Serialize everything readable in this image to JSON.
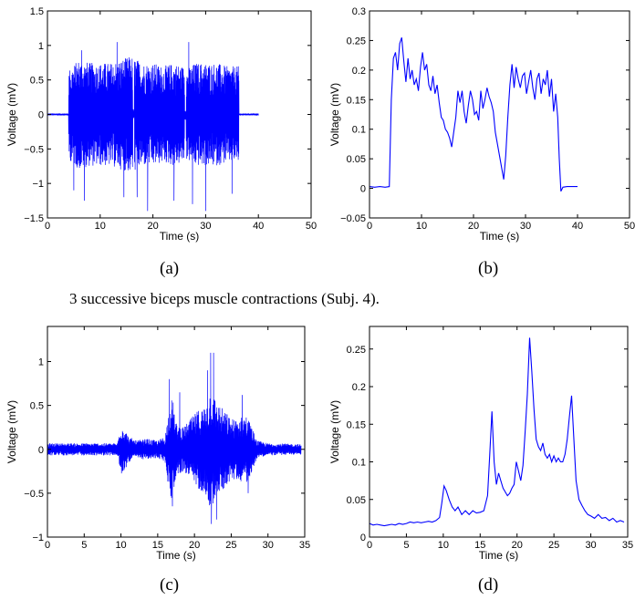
{
  "caption": "3 successive biceps muscle contractions (Subj. 4).",
  "sublabels": [
    "(a)",
    "(b)",
    "(c)",
    "(d)"
  ],
  "chart_data": [
    {
      "id": "a",
      "type": "line",
      "xlabel": "Time (s)",
      "ylabel": "Voltage (mV)",
      "xlim": [
        0,
        50
      ],
      "ylim": [
        -1.5,
        1.5
      ],
      "xticks": [
        0,
        10,
        20,
        30,
        40,
        50
      ],
      "yticks": [
        -1.5,
        -1,
        -0.5,
        0,
        0.5,
        1,
        1.5
      ],
      "ytick_labels": [
        "−1.5",
        "−1",
        "−0.5",
        "0",
        "0.5",
        "1",
        "1.5"
      ],
      "signal": "raw-emg",
      "series": [
        {
          "color": "#0000ff",
          "quiet": [
            [
              0,
              4.0
            ],
            [
              36.3,
              40
            ]
          ],
          "active": [
            [
              4.0,
              25.8
            ],
            [
              26.3,
              36.3
            ]
          ],
          "dropouts": [
            [
              16.2,
              16.5
            ],
            [
              26.0,
              26.3
            ]
          ],
          "envelope": [
            [
              4,
              0.65
            ],
            [
              6,
              0.8
            ],
            [
              8,
              0.75
            ],
            [
              10,
              0.75
            ],
            [
              12,
              0.75
            ],
            [
              14,
              0.8
            ],
            [
              16,
              0.85
            ],
            [
              18,
              0.75
            ],
            [
              20,
              0.75
            ],
            [
              22,
              0.7
            ],
            [
              24,
              0.75
            ],
            [
              25.8,
              0.7
            ],
            [
              26.3,
              0.65
            ],
            [
              28,
              0.75
            ],
            [
              30,
              0.75
            ],
            [
              32,
              0.75
            ],
            [
              34,
              0.7
            ],
            [
              36.3,
              0.7
            ]
          ],
          "peaks": [
            [
              5.0,
              -1.1
            ],
            [
              6.5,
              0.93
            ],
            [
              7.0,
              -1.25
            ],
            [
              13.2,
              1.05
            ],
            [
              14.5,
              -1.2
            ],
            [
              17.0,
              -1.2
            ],
            [
              19.0,
              -1.4
            ],
            [
              24.0,
              -1.25
            ],
            [
              26.8,
              1.05
            ],
            [
              27.5,
              -1.3
            ],
            [
              30.0,
              -1.4
            ],
            [
              35.0,
              -1.15
            ]
          ]
        }
      ]
    },
    {
      "id": "b",
      "type": "line",
      "xlabel": "Time (s)",
      "ylabel": "Voltage (mV)",
      "xlim": [
        0,
        50
      ],
      "ylim": [
        -0.05,
        0.3
      ],
      "xticks": [
        0,
        10,
        20,
        30,
        40,
        50
      ],
      "yticks": [
        -0.05,
        0,
        0.05,
        0.1,
        0.15,
        0.2,
        0.25,
        0.3
      ],
      "ytick_labels": [
        "−0.05",
        "0",
        "0.05",
        "0.1",
        "0.15",
        "0.2",
        "0.25",
        "0.3"
      ],
      "series": [
        {
          "color": "#0000ff",
          "x": [
            0,
            1,
            2,
            3,
            3.8,
            4.2,
            4.6,
            5.0,
            5.4,
            5.8,
            6.2,
            6.6,
            7.0,
            7.4,
            7.8,
            8.2,
            8.6,
            9.0,
            9.4,
            9.8,
            10.2,
            10.6,
            11.0,
            11.4,
            11.8,
            12.2,
            12.6,
            13.0,
            13.4,
            13.8,
            14.2,
            14.6,
            15.0,
            15.4,
            15.8,
            16.2,
            16.6,
            17.0,
            17.4,
            17.8,
            18.2,
            18.6,
            19.0,
            19.4,
            19.8,
            20.2,
            20.6,
            21.0,
            21.4,
            21.8,
            22.2,
            22.6,
            23.0,
            23.4,
            23.8,
            24.2,
            24.6,
            25.0,
            25.4,
            25.8,
            26.2,
            26.6,
            27.0,
            27.4,
            27.8,
            28.2,
            28.6,
            29.0,
            29.4,
            29.8,
            30.2,
            30.6,
            31.0,
            31.4,
            31.8,
            32.2,
            32.6,
            33.0,
            33.4,
            33.8,
            34.2,
            34.6,
            35.0,
            35.4,
            35.8,
            36.2,
            36.5,
            36.8,
            37.2,
            38,
            39,
            40
          ],
          "y": [
            0.003,
            0.002,
            0.003,
            0.002,
            0.003,
            0.15,
            0.22,
            0.23,
            0.2,
            0.245,
            0.255,
            0.215,
            0.18,
            0.22,
            0.185,
            0.2,
            0.175,
            0.185,
            0.165,
            0.205,
            0.23,
            0.2,
            0.21,
            0.175,
            0.165,
            0.19,
            0.16,
            0.175,
            0.145,
            0.12,
            0.115,
            0.1,
            0.095,
            0.085,
            0.07,
            0.095,
            0.12,
            0.165,
            0.145,
            0.165,
            0.13,
            0.11,
            0.14,
            0.165,
            0.15,
            0.125,
            0.13,
            0.115,
            0.165,
            0.135,
            0.15,
            0.17,
            0.155,
            0.145,
            0.13,
            0.095,
            0.075,
            0.055,
            0.035,
            0.015,
            0.055,
            0.12,
            0.175,
            0.21,
            0.17,
            0.205,
            0.185,
            0.17,
            0.19,
            0.195,
            0.16,
            0.18,
            0.2,
            0.17,
            0.15,
            0.185,
            0.195,
            0.16,
            0.185,
            0.175,
            0.2,
            0.155,
            0.185,
            0.13,
            0.16,
            0.12,
            0.05,
            -0.005,
            0.002,
            0.003,
            0.003,
            0.003
          ]
        }
      ]
    },
    {
      "id": "c",
      "type": "line",
      "xlabel": "Time (s)",
      "ylabel": "Voltage (mV)",
      "xlim": [
        0,
        35
      ],
      "ylim": [
        -1,
        1.4
      ],
      "xticks": [
        0,
        5,
        10,
        15,
        20,
        25,
        30,
        35
      ],
      "yticks": [
        -1,
        -0.5,
        0,
        0.5,
        1
      ],
      "ytick_labels": [
        "−1",
        "−0.5",
        "0",
        "0.5",
        "1"
      ],
      "signal": "raw-emg",
      "series": [
        {
          "color": "#0000ff",
          "envelope": [
            [
              0,
              0.07
            ],
            [
              5,
              0.07
            ],
            [
              9.5,
              0.07
            ],
            [
              10,
              0.3
            ],
            [
              10.5,
              0.25
            ],
            [
              11,
              0.15
            ],
            [
              12,
              0.1
            ],
            [
              13.5,
              0.12
            ],
            [
              15,
              0.1
            ],
            [
              16,
              0.15
            ],
            [
              16.6,
              0.5
            ],
            [
              17,
              0.6
            ],
            [
              17.5,
              0.3
            ],
            [
              18.5,
              0.25
            ],
            [
              19.5,
              0.35
            ],
            [
              20.5,
              0.45
            ],
            [
              21.5,
              0.5
            ],
            [
              22.2,
              0.7
            ],
            [
              23,
              0.55
            ],
            [
              24,
              0.45
            ],
            [
              25,
              0.35
            ],
            [
              26,
              0.35
            ],
            [
              27,
              0.4
            ],
            [
              27.6,
              0.3
            ],
            [
              28.5,
              0.1
            ],
            [
              30,
              0.07
            ],
            [
              34.5,
              0.06
            ]
          ],
          "peaks": [
            [
              16.6,
              0.8
            ],
            [
              17.0,
              -0.65
            ],
            [
              18.0,
              0.65
            ],
            [
              21.8,
              0.9
            ],
            [
              22.2,
              1.1
            ],
            [
              22.6,
              1.1
            ],
            [
              22.3,
              -0.85
            ],
            [
              23.0,
              -0.8
            ],
            [
              26.5,
              0.62
            ],
            [
              27.3,
              -0.5
            ],
            [
              10.2,
              -0.25
            ]
          ],
          "xmax": 34.5
        }
      ]
    },
    {
      "id": "d",
      "type": "line",
      "xlabel": "Time (s)",
      "ylabel": "Voltage (mV)",
      "xlim": [
        0,
        35
      ],
      "ylim": [
        0,
        0.28
      ],
      "xticks": [
        0,
        5,
        10,
        15,
        20,
        25,
        30,
        35
      ],
      "yticks": [
        0,
        0.05,
        0.1,
        0.15,
        0.2,
        0.25
      ],
      "ytick_labels": [
        "0",
        "0.05",
        "0.1",
        "0.15",
        "0.2",
        "0.25"
      ],
      "series": [
        {
          "color": "#0000ff",
          "x": [
            0,
            0.5,
            1,
            1.5,
            2,
            2.5,
            3,
            3.5,
            4,
            4.5,
            5,
            5.5,
            6,
            6.5,
            7,
            7.5,
            8,
            8.5,
            9,
            9.5,
            9.8,
            10.1,
            10.4,
            10.8,
            11.2,
            11.6,
            12,
            12.5,
            13,
            13.5,
            14,
            14.5,
            15,
            15.5,
            16,
            16.3,
            16.6,
            16.9,
            17.2,
            17.5,
            17.8,
            18.1,
            18.4,
            18.7,
            19,
            19.3,
            19.6,
            19.9,
            20.2,
            20.5,
            20.8,
            21.1,
            21.4,
            21.7,
            22.0,
            22.3,
            22.6,
            22.9,
            23.2,
            23.5,
            23.8,
            24.1,
            24.4,
            24.7,
            25,
            25.3,
            25.6,
            25.9,
            26.2,
            26.5,
            26.8,
            27.1,
            27.4,
            27.7,
            28,
            28.4,
            28.8,
            29.2,
            29.6,
            30,
            30.5,
            31,
            31.5,
            32,
            32.5,
            33,
            33.5,
            34,
            34.5
          ],
          "y": [
            0.018,
            0.016,
            0.017,
            0.016,
            0.015,
            0.016,
            0.017,
            0.016,
            0.018,
            0.017,
            0.018,
            0.02,
            0.019,
            0.02,
            0.019,
            0.02,
            0.021,
            0.02,
            0.022,
            0.026,
            0.045,
            0.068,
            0.062,
            0.05,
            0.04,
            0.035,
            0.04,
            0.03,
            0.035,
            0.03,
            0.035,
            0.032,
            0.033,
            0.035,
            0.055,
            0.11,
            0.167,
            0.1,
            0.07,
            0.085,
            0.075,
            0.065,
            0.06,
            0.055,
            0.058,
            0.065,
            0.07,
            0.1,
            0.088,
            0.075,
            0.095,
            0.14,
            0.19,
            0.265,
            0.22,
            0.17,
            0.13,
            0.12,
            0.115,
            0.125,
            0.11,
            0.105,
            0.11,
            0.1,
            0.108,
            0.1,
            0.105,
            0.1,
            0.1,
            0.11,
            0.13,
            0.16,
            0.188,
            0.13,
            0.075,
            0.05,
            0.042,
            0.035,
            0.03,
            0.028,
            0.025,
            0.03,
            0.025,
            0.026,
            0.022,
            0.025,
            0.02,
            0.022,
            0.02
          ]
        }
      ]
    }
  ]
}
